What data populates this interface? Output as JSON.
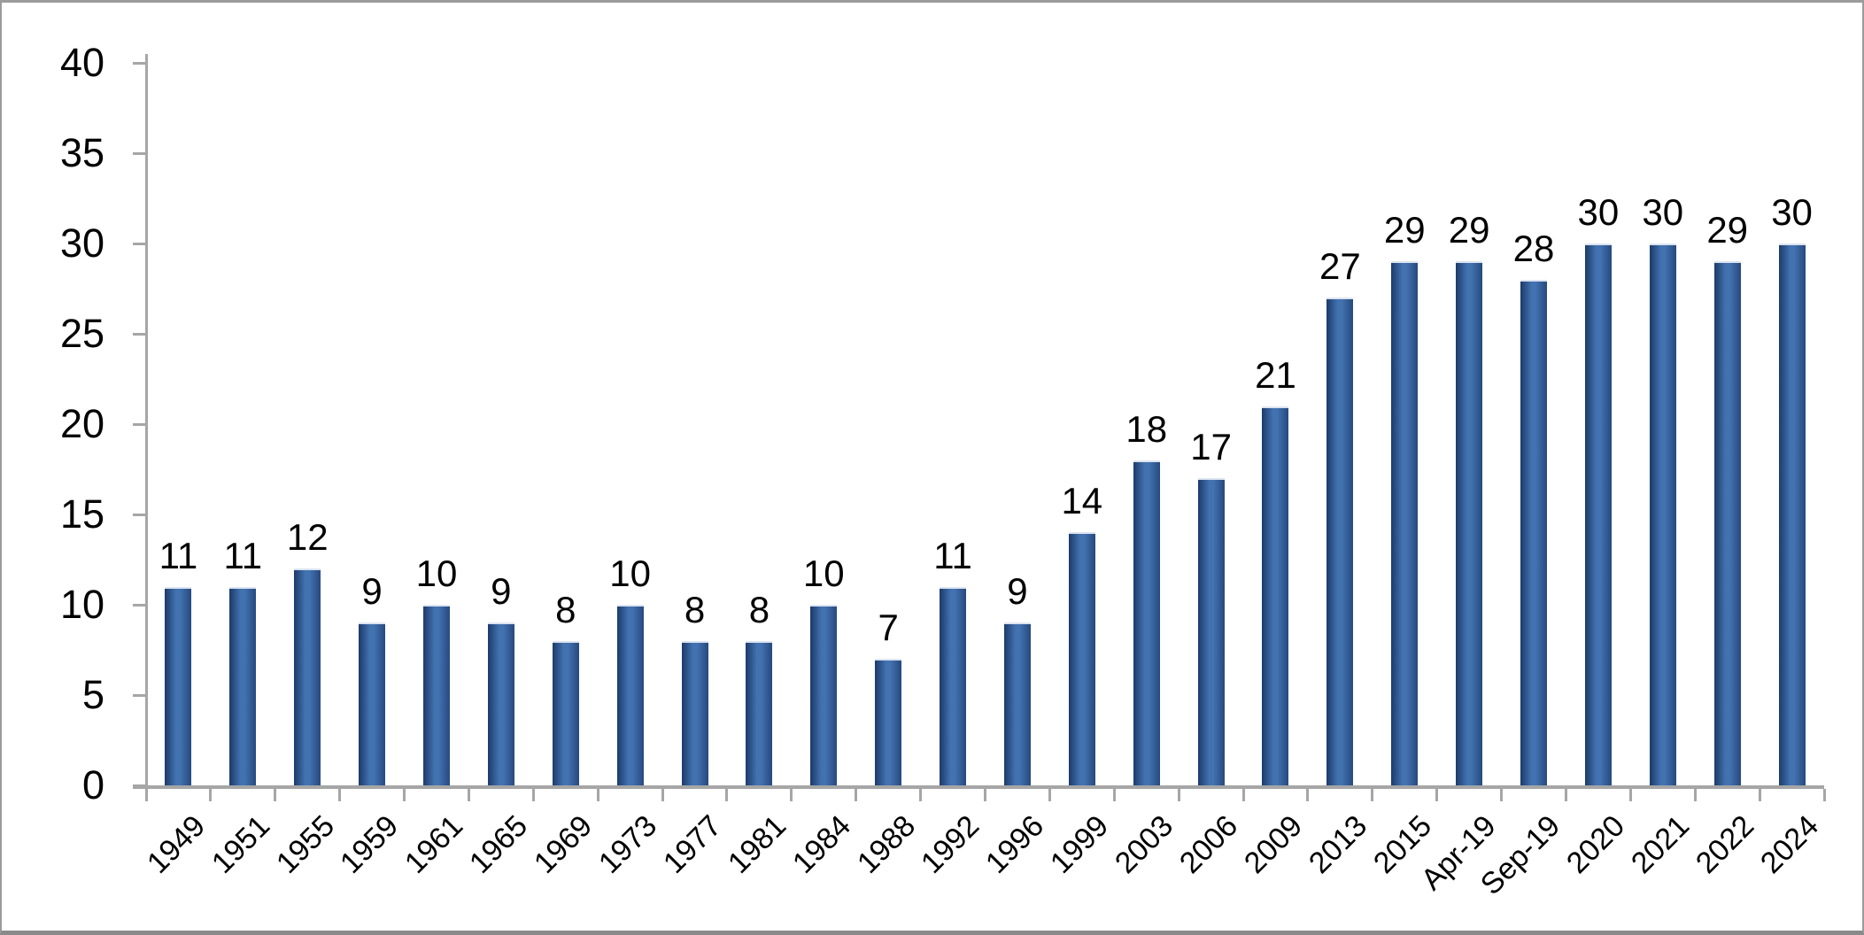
{
  "chart_data": {
    "type": "bar",
    "title": "",
    "xlabel": "",
    "ylabel": "",
    "categories": [
      "1949",
      "1951",
      "1955",
      "1959",
      "1961",
      "1965",
      "1969",
      "1973",
      "1977",
      "1981",
      "1984",
      "1988",
      "1992",
      "1996",
      "1999",
      "2003",
      "2006",
      "2009",
      "2013",
      "2015",
      "Apr-19",
      "Sep-19",
      "2020",
      "2021",
      "2022",
      "2024"
    ],
    "values": [
      11,
      11,
      12,
      9,
      10,
      9,
      8,
      10,
      8,
      8,
      10,
      7,
      11,
      9,
      14,
      18,
      17,
      21,
      27,
      29,
      29,
      28,
      30,
      30,
      29,
      30
    ],
    "data_labels": [
      "11",
      "11",
      "12",
      "9",
      "10",
      "9",
      "8",
      "10",
      "8",
      "8",
      "10",
      "7",
      "11",
      "9",
      "14",
      "18",
      "17",
      "21",
      "27",
      "29",
      "29",
      "28",
      "30",
      "30",
      "29",
      "30"
    ],
    "ylim": [
      0,
      40
    ],
    "yticks": [
      "0",
      "5",
      "10",
      "15",
      "20",
      "25",
      "30",
      "35",
      "40"
    ],
    "grid": false,
    "legend": "none",
    "colors": {
      "bar_edge": "#1C3A69",
      "bar_mid": "#4272B0",
      "bar_right": "#27497E",
      "bar_top_highlight": "#DCE4F0",
      "axis": "#A6A6A6",
      "text": "#000000",
      "frame": "#9B9B9B",
      "background": "#FFFFFF"
    }
  }
}
